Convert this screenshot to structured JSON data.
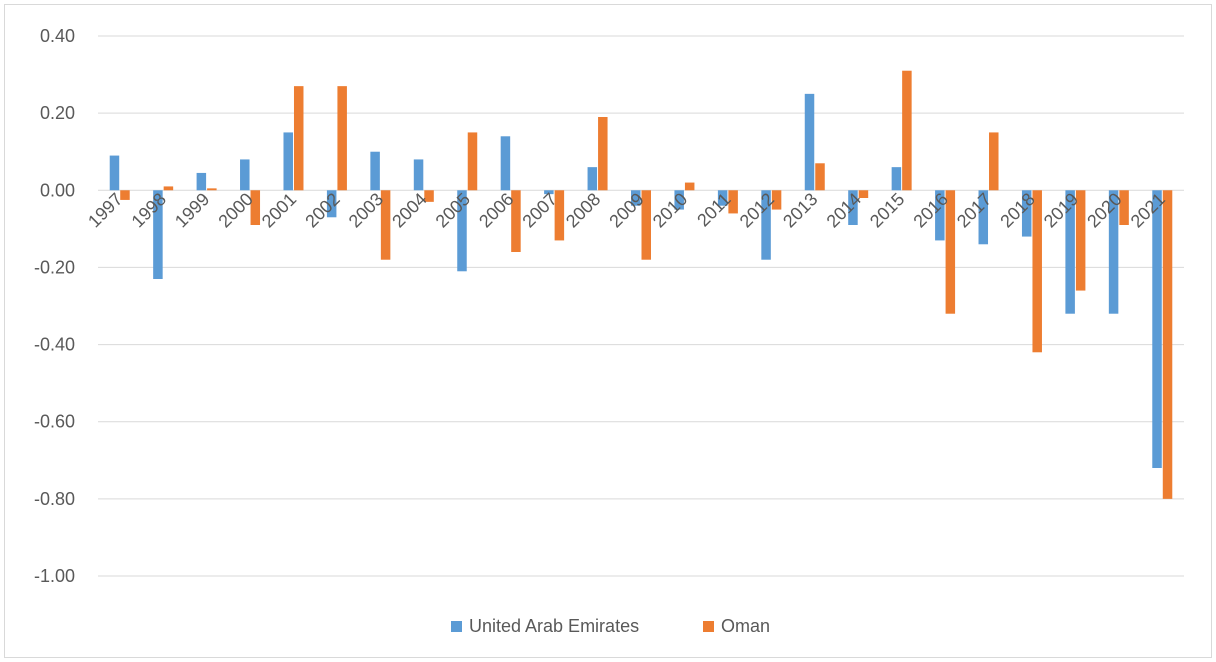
{
  "chart_data": {
    "type": "bar",
    "title": "",
    "xlabel": "",
    "ylabel": "",
    "ylim": [
      -1.0,
      0.4
    ],
    "ytick_step": 0.2,
    "grid": true,
    "legend_position": "bottom",
    "categories": [
      "1997",
      "1998",
      "1999",
      "2000",
      "2001",
      "2002",
      "2003",
      "2004",
      "2005",
      "2006",
      "2007",
      "2008",
      "2009",
      "2010",
      "2011",
      "2012",
      "2013",
      "2014",
      "2015",
      "2016",
      "2017",
      "2018",
      "2019",
      "2020",
      "2021"
    ],
    "series": [
      {
        "name": "United Arab Emirates",
        "color": "#5b9bd5",
        "values": [
          0.09,
          -0.23,
          0.045,
          0.08,
          0.15,
          -0.07,
          0.1,
          0.08,
          -0.21,
          0.14,
          -0.01,
          0.06,
          -0.04,
          -0.05,
          -0.04,
          -0.18,
          0.25,
          -0.09,
          0.06,
          -0.13,
          -0.14,
          -0.12,
          -0.32,
          -0.32,
          -0.72
        ]
      },
      {
        "name": "Oman",
        "color": "#ed7d31",
        "values": [
          -0.025,
          0.01,
          0.005,
          -0.09,
          0.27,
          0.27,
          -0.18,
          -0.03,
          0.15,
          -0.16,
          -0.13,
          0.19,
          -0.18,
          0.02,
          -0.06,
          -0.05,
          0.07,
          -0.02,
          0.31,
          -0.32,
          0.15,
          -0.42,
          -0.26,
          -0.09,
          -0.8
        ]
      }
    ]
  }
}
